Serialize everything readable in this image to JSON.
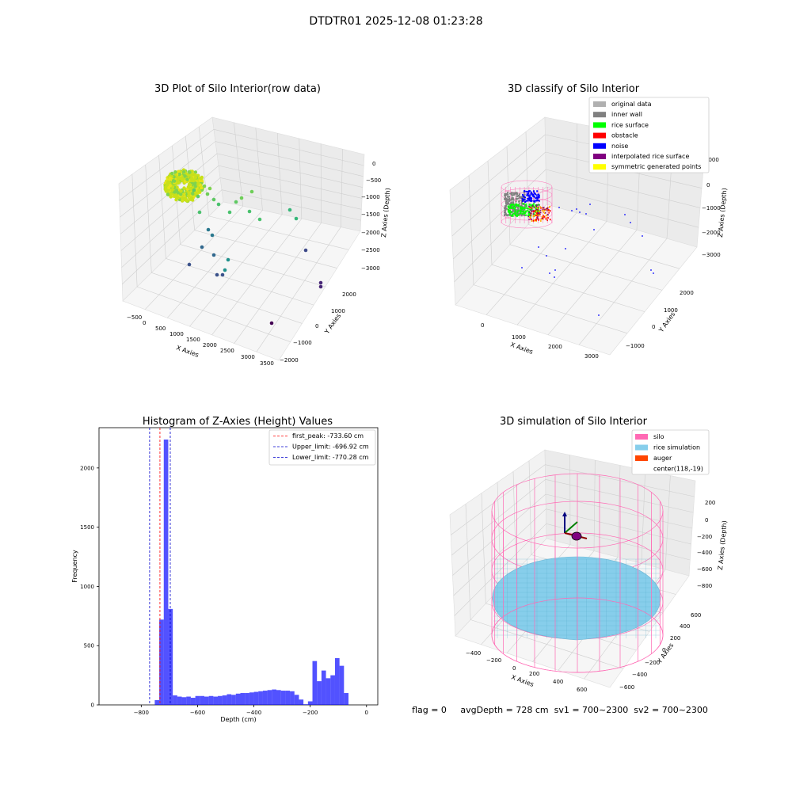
{
  "figure": {
    "suptitle": "DTDTR01 2025-12-08 01:23:28",
    "status_line": "flag = 0     avgDepth = 728 cm  sv1 = 700~2300  sv2 = 700~2300"
  },
  "colors": {
    "pane": "#f2f2f2",
    "grid": "#cccccc",
    "original": "#b0b0b0",
    "inner_wall": "#808080",
    "rice_surface": "#00ff00",
    "obstacle": "#ff0000",
    "noise": "#0000ff",
    "interpolated": "#800080",
    "symmetric": "#ffff00",
    "silo": "#ff69b4",
    "rice_sim": "#87ceeb",
    "auger": "#ff4500",
    "hist_bar": "#0000ff",
    "peak_line": "#ff0000",
    "limit_line": "#0000cc"
  },
  "panel1": {
    "title": "3D Plot of Silo Interior(row data)",
    "xlabel": "X Axies",
    "ylabel": "Y Axies",
    "zlabel": "Z Axies (Depth)",
    "xticks": [
      "−500",
      "0",
      "500",
      "1000",
      "1500",
      "2000",
      "2500",
      "3000",
      "3500"
    ],
    "yticks": [
      "−2000",
      "−1000",
      "0",
      "1000",
      "2000"
    ],
    "zticks": [
      "0",
      "−500",
      "−1000",
      "−1500",
      "−2000",
      "−2500",
      "−3000"
    ]
  },
  "panel2": {
    "title": "3D classify of Silo Interior",
    "xlabel": "X Axies",
    "ylabel": "Y Axies",
    "zlabel": "Z Axies (Depth)",
    "xticks": [
      "0",
      "1000",
      "2000",
      "3000"
    ],
    "yticks": [
      "−1000",
      "0",
      "1000",
      "2000"
    ],
    "zticks": [
      "1000",
      "0",
      "−1000",
      "−2000",
      "−3000"
    ],
    "legend": [
      {
        "label": "original data",
        "color": "#b0b0b0"
      },
      {
        "label": "inner wall",
        "color": "#808080"
      },
      {
        "label": "rice surface",
        "color": "#00ff00"
      },
      {
        "label": "obstacle",
        "color": "#ff0000"
      },
      {
        "label": "noise",
        "color": "#0000ff"
      },
      {
        "label": "interpolated rice surface",
        "color": "#800080"
      },
      {
        "label": "symmetric generated points",
        "color": "#ffff00"
      }
    ]
  },
  "panel4": {
    "title": "3D simulation of Silo Interior",
    "xlabel": "X Axies",
    "ylabel": "Y Axies",
    "zlabel": "Z Axies (Depth)",
    "xticks": [
      "−400",
      "−200",
      "0",
      "200",
      "400",
      "600"
    ],
    "yticks": [
      "−600",
      "−400",
      "−200",
      "0",
      "200",
      "400",
      "600"
    ],
    "zticks": [
      "200",
      "0",
      "−200",
      "−400",
      "−600",
      "−800"
    ],
    "legend": [
      {
        "label": "silo",
        "color": "#ff69b4"
      },
      {
        "label": "rice simulation",
        "color": "#87ceeb"
      },
      {
        "label": "auger",
        "color": "#ff4500"
      },
      {
        "label": "center(118,-19)",
        "color": ""
      }
    ]
  },
  "chart_data": {
    "type": "bar",
    "title": "Histogram of Z-Axies (Height) Values",
    "xlabel": "Depth (cm)",
    "ylabel": "Frequency",
    "xlim": [
      -950,
      40
    ],
    "ylim": [
      0,
      2340
    ],
    "xticks": [
      -800,
      -600,
      -400,
      -200,
      0
    ],
    "yticks": [
      0,
      500,
      1000,
      1500,
      2000
    ],
    "bin_width": 16,
    "bin_starts": [
      -752,
      -736,
      -720,
      -704,
      -688,
      -672,
      -656,
      -640,
      -624,
      -608,
      -592,
      -576,
      -560,
      -544,
      -528,
      -512,
      -496,
      -480,
      -464,
      -448,
      -432,
      -416,
      -400,
      -384,
      -368,
      -352,
      -336,
      -320,
      -304,
      -288,
      -272,
      -256,
      -240,
      -224,
      -208,
      -192,
      -176,
      -160,
      -144,
      -128,
      -112,
      -96,
      -80,
      -64,
      -48,
      -32,
      -16
    ],
    "values": [
      40,
      720,
      2240,
      810,
      80,
      70,
      65,
      70,
      60,
      75,
      75,
      70,
      75,
      70,
      75,
      80,
      90,
      85,
      95,
      100,
      100,
      105,
      110,
      115,
      120,
      125,
      130,
      125,
      120,
      120,
      115,
      85,
      45,
      5,
      30,
      370,
      200,
      290,
      225,
      250,
      395,
      330,
      100,
      0,
      0,
      0,
      0
    ],
    "lines": [
      {
        "label": "first_peak: -733.60 cm",
        "x": -733.6,
        "color": "#ff0000"
      },
      {
        "label": "Upper_limit: -696.92 cm",
        "x": -696.92,
        "color": "#0000cc"
      },
      {
        "label": "Lower_limit: -770.28 cm",
        "x": -770.28,
        "color": "#0000cc"
      }
    ]
  }
}
